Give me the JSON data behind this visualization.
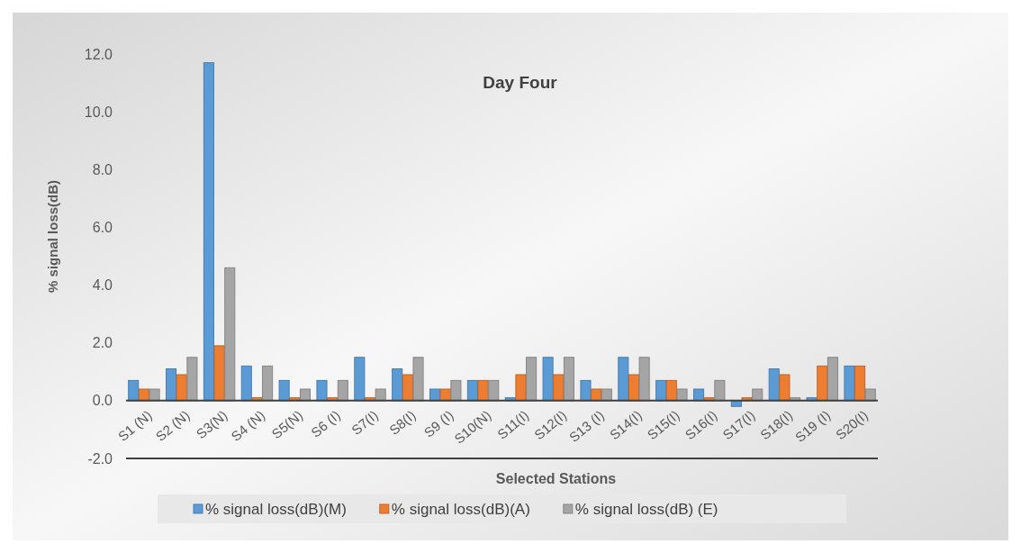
{
  "chart_data": {
    "type": "bar",
    "title": "Day Four",
    "xlabel": "Selected Stations",
    "ylabel": "% signal loss(dB)",
    "categories": [
      "S1 (N)",
      "S2 (N)",
      "S3(N)",
      "S4 (N)",
      "S5(N)",
      "S6 (I)",
      "S7(I)",
      "S8(I)",
      "S9 (I)",
      "S10(N)",
      "S11(I)",
      "S12(I)",
      "S13 (I)",
      "S14(I)",
      "S15(I)",
      "S16(I)",
      "S17(I)",
      "S18(I)",
      "S19 (I)",
      "S20(I)"
    ],
    "series": [
      {
        "name": "% signal loss(dB)(M)",
        "color": "#5b9bd5",
        "values": [
          0.7,
          1.1,
          11.7,
          1.2,
          0.7,
          0.7,
          1.5,
          1.1,
          0.4,
          0.7,
          0.1,
          1.5,
          0.7,
          1.5,
          0.7,
          0.4,
          -0.2,
          1.1,
          0.1,
          1.2
        ]
      },
      {
        "name": "% signal loss(dB)(A)",
        "color": "#ed7d31",
        "values": [
          0.4,
          0.9,
          1.9,
          0.1,
          0.1,
          0.1,
          0.1,
          0.9,
          0.4,
          0.7,
          0.9,
          0.9,
          0.4,
          0.9,
          0.7,
          0.1,
          0.1,
          0.9,
          1.2,
          1.2
        ]
      },
      {
        "name": "% signal loss(dB) (E)",
        "color": "#a5a5a5",
        "values": [
          0.4,
          1.5,
          4.6,
          1.2,
          0.4,
          0.7,
          0.4,
          1.5,
          0.7,
          0.7,
          1.5,
          1.5,
          0.4,
          1.5,
          0.4,
          0.7,
          0.4,
          0.1,
          1.5,
          0.4
        ]
      }
    ],
    "ylim": [
      -2,
      12
    ],
    "yticks": [
      {
        "value": -2,
        "label": "-2.0"
      },
      {
        "value": 0,
        "label": "0.0"
      },
      {
        "value": 2,
        "label": "2.0"
      },
      {
        "value": 4,
        "label": "4.0"
      },
      {
        "value": 6,
        "label": "6.0"
      },
      {
        "value": 8,
        "label": "8.0"
      },
      {
        "value": 10,
        "label": "10.0"
      },
      {
        "value": 12,
        "label": "12.0"
      }
    ],
    "grid": false,
    "legend": "bottom"
  }
}
